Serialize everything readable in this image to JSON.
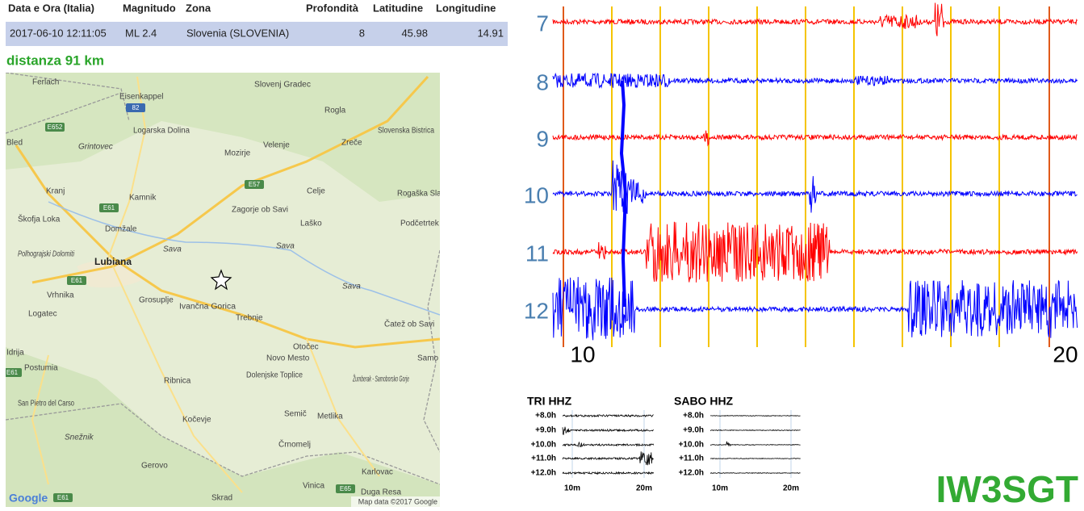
{
  "table": {
    "headers": [
      "Data e Ora (Italia)",
      "Magnitudo",
      "Zona",
      "Profondità",
      "Latitudine",
      "Longitudine"
    ],
    "rows": [
      [
        "2017-06-10 12:11:05",
        "ML 2.4",
        "Slovenia (SLOVENIA)",
        8,
        45.98,
        14.91
      ]
    ]
  },
  "distance": "distanza 91 km",
  "map": {
    "labels": [
      "Ferlach",
      "Eisenkappel",
      "Slovenj Gradec",
      "Rogla",
      "Logarska Dolina",
      "Slovenska Bistrica",
      "Bled",
      "Grintovec",
      "Mozirje",
      "Velenje",
      "Zreče",
      "Kranj",
      "Kamnik",
      "Celje",
      "Rogaška Slatina",
      "Škofja Loka",
      "Zagorje ob Savi",
      "Laško",
      "Podčetrtek",
      "Domžale",
      "Sava",
      "Sava",
      "Polhograjski Dolomiti",
      "Lubiana",
      "Vrhnika",
      "Sava",
      "Grosuplje",
      "Ivančna Gorica",
      "Logatec",
      "Trebnje",
      "Otočec",
      "Čatež ob Savi",
      "Idrija",
      "Novo Mesto",
      "Samo",
      "Postumia",
      "Dolenjske Toplice",
      "Žumberak - Samoborsko Gorje",
      "Ribnica",
      "San Pietro del Carso",
      "Semič",
      "Metlika",
      "Kočevje",
      "Snežnik",
      "Črnomelj",
      "Gerovo",
      "Karlovac",
      "Vinica",
      "Duga Resa",
      "Skrad"
    ],
    "shields": [
      "82",
      "E652",
      "E57",
      "E61",
      "E61",
      "E61",
      "E65",
      "E61"
    ],
    "attribution": "Map data ©2017 Google",
    "logo": "Google"
  },
  "helicorder": {
    "rows": [
      "7",
      "8",
      "9",
      "10",
      "11",
      "12"
    ],
    "x_labels": [
      "10",
      "20"
    ]
  },
  "mini": [
    {
      "title": "TRI HHZ",
      "rows": [
        "+8.0h",
        "+9.0h",
        "+10.0h",
        "+11.0h",
        "+12.0h"
      ],
      "x_labels": [
        "10m",
        "20m"
      ]
    },
    {
      "title": "SABO HHZ",
      "rows": [
        "+8.0h",
        "+9.0h",
        "+10.0h",
        "+11.0h",
        "+12.0h"
      ],
      "x_labels": [
        "10m",
        "20m"
      ]
    }
  ],
  "callsign": "IW3SGT"
}
